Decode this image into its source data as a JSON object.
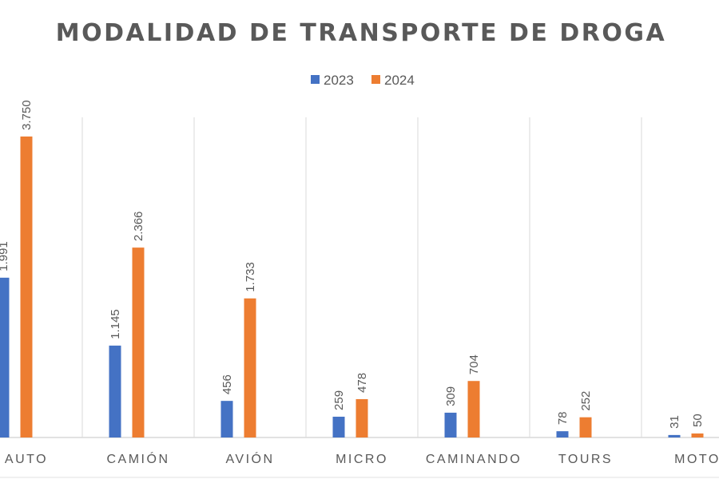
{
  "chart_data": {
    "type": "bar",
    "title": "MODALIDAD DE TRANSPORTE DE DROGA",
    "categories": [
      "AUTO",
      "CAMIÓN",
      "AVIÓN",
      "MICRO",
      "CAMINANDO",
      "TOURS",
      "MOTO"
    ],
    "series": [
      {
        "name": "2023",
        "color": "#4472C4",
        "values": [
          1991,
          1145,
          456,
          259,
          309,
          78,
          31
        ],
        "labels": [
          "1.991",
          "1.145",
          "456",
          "259",
          "309",
          "78",
          "31"
        ]
      },
      {
        "name": "2024",
        "color": "#ED7D31",
        "values": [
          3750,
          2366,
          1733,
          478,
          704,
          252,
          50
        ],
        "labels": [
          "3.750",
          "2.366",
          "1.733",
          "478",
          "704",
          "252",
          "50"
        ]
      }
    ],
    "legend_position": "top",
    "grid": "vertical category separators",
    "ylim": [
      0,
      3750
    ]
  }
}
